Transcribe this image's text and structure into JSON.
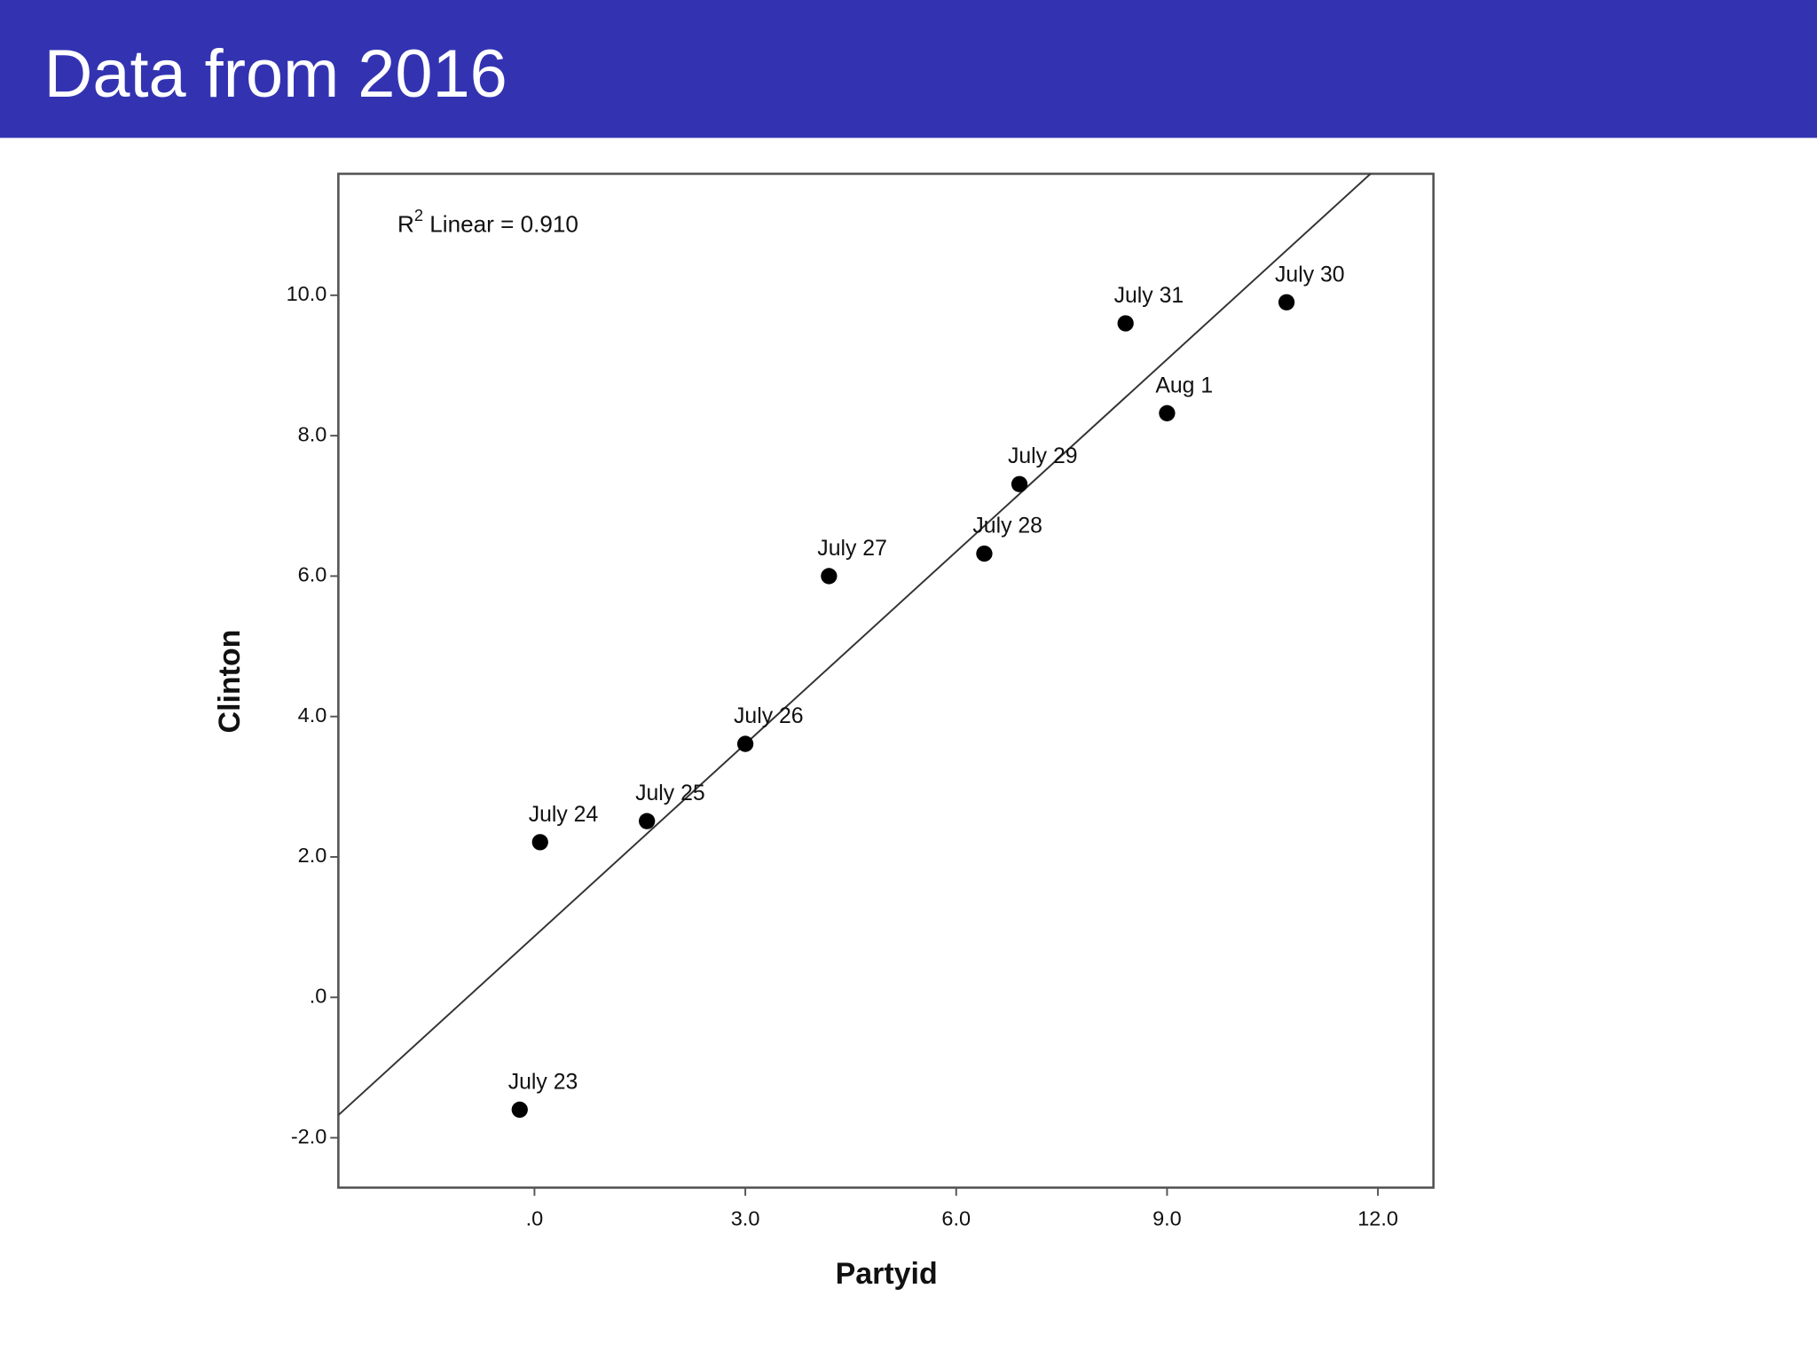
{
  "header": {
    "title": "Data from 2016"
  },
  "chart_data": {
    "type": "scatter",
    "x_label": "Partyid",
    "y_label": "Clinton",
    "annotation": [
      "R",
      "2",
      " Linear = 0.910"
    ],
    "x": [
      -0.21,
      0.08,
      1.6,
      3.0,
      4.19,
      6.4,
      6.9,
      8.41,
      9.0,
      10.7
    ],
    "values": [
      -1.6,
      2.21,
      2.51,
      3.61,
      6.0,
      6.32,
      7.31,
      9.6,
      8.32,
      9.9
    ],
    "labels": [
      "July 23",
      "July 24",
      "July 25",
      "July 26",
      "July 27",
      "July 28",
      "July 29",
      "July 31",
      "Aug 1",
      "July 30"
    ],
    "color": "#000000",
    "trendline": {
      "slope": 0.913,
      "intercept": 0.87
    },
    "xlim": [
      -2.79,
      12.79
    ],
    "ylim": [
      -2.71,
      11.73
    ],
    "xticks": [
      {
        "value": 0,
        "label": ".0"
      },
      {
        "value": 3,
        "label": "3.0"
      },
      {
        "value": 6,
        "label": "6.0"
      },
      {
        "value": 9,
        "label": "9.0"
      },
      {
        "value": 12,
        "label": "12.0"
      }
    ],
    "yticks": [
      {
        "value": -2,
        "label": "-2.0"
      },
      {
        "value": 0,
        "label": ".0"
      },
      {
        "value": 2,
        "label": "2.0"
      },
      {
        "value": 4,
        "label": "4.0"
      },
      {
        "value": 6,
        "label": "6.0"
      },
      {
        "value": 8,
        "label": "8.0"
      },
      {
        "value": 10,
        "label": "10.0"
      }
    ],
    "grid": false
  }
}
